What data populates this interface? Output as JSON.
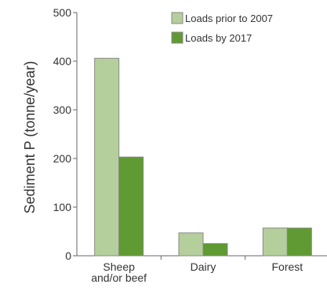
{
  "chart_data": {
    "type": "bar",
    "categories": [
      "Sheep and/or beef",
      "Dairy",
      "Forest"
    ],
    "category_label_lines": [
      [
        "Sheep",
        "and/or beef"
      ],
      [
        "Dairy"
      ],
      [
        "Forest"
      ]
    ],
    "series": [
      {
        "name": "Loads prior to 2007",
        "values": [
          406,
          47,
          57
        ],
        "color": "#b5cf9c"
      },
      {
        "name": "Loads by 2017",
        "values": [
          203,
          25,
          57
        ],
        "color": "#5f9a32"
      }
    ],
    "ylabel": "Sediment P (tonne/year)",
    "xlabel": "",
    "ylim": [
      0,
      500
    ],
    "yticks": [
      0,
      100,
      200,
      300,
      400,
      500
    ],
    "grid": false,
    "legend_position": "top-right",
    "axis_color": "#666666",
    "bar_border_color": "#888888"
  }
}
